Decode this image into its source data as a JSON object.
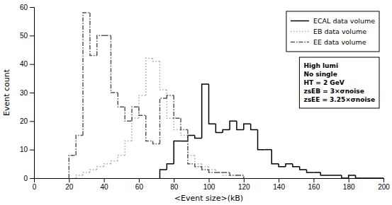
{
  "chart_data": {
    "type": "histogram",
    "xlabel": "<Event size>(kB)",
    "ylabel": "Event count",
    "xlim": [
      0,
      200
    ],
    "ylim": [
      0,
      60
    ],
    "xticks": [
      0,
      20,
      40,
      60,
      80,
      100,
      120,
      140,
      160,
      180,
      200
    ],
    "yticks": [
      0,
      10,
      20,
      30,
      40,
      50,
      60
    ],
    "legend": "upper right",
    "series": [
      {
        "name": "ECAL data volume",
        "color": "#000000",
        "line_style": "solid",
        "bins": [
          72,
          76,
          80,
          84,
          88,
          92,
          96,
          100,
          104,
          108,
          112,
          116,
          120,
          124,
          128,
          132,
          136,
          140,
          144,
          148,
          152,
          156,
          160,
          164,
          168,
          172,
          176,
          180,
          184,
          188,
          192,
          196,
          200
        ],
        "values": [
          3,
          5,
          13,
          13,
          15,
          14,
          33,
          19,
          16,
          17,
          20,
          17,
          19,
          17,
          10,
          10,
          5,
          4,
          5,
          4,
          3,
          2,
          2,
          1,
          1,
          1,
          0,
          1,
          0,
          0,
          0,
          0
        ]
      },
      {
        "name": "EB data volume",
        "color": "#aaaaaa",
        "line_style": "dotted",
        "bins": [
          24,
          28,
          32,
          36,
          40,
          44,
          48,
          52,
          56,
          60,
          64,
          68,
          72,
          76,
          80,
          84,
          88,
          92,
          96,
          100,
          104,
          108,
          112,
          116,
          120
        ],
        "values": [
          1,
          2,
          3,
          4,
          5,
          6,
          8,
          13,
          21,
          29,
          42,
          41,
          31,
          21,
          17,
          15,
          8,
          5,
          4,
          3,
          2,
          1,
          1,
          1
        ]
      },
      {
        "name": "EE data volume",
        "color": "#555555",
        "line_style": "dashdot",
        "bins": [
          20,
          24,
          28,
          32,
          36,
          40,
          44,
          48,
          52,
          56,
          60,
          64,
          68,
          72,
          76,
          80,
          84,
          88,
          92,
          96,
          100,
          104,
          108,
          112,
          116,
          120
        ],
        "values": [
          8,
          15,
          58,
          43,
          50,
          50,
          30,
          25,
          20,
          25,
          22,
          13,
          12,
          28,
          29,
          21,
          17,
          5,
          4,
          3,
          2,
          2,
          2,
          1,
          1
        ]
      }
    ],
    "annotations": [
      "High lumi",
      "No single",
      "HT = 2 GeV",
      "zsEB = 3×σnoise",
      "zsEE = 3.25×σnoise"
    ]
  }
}
